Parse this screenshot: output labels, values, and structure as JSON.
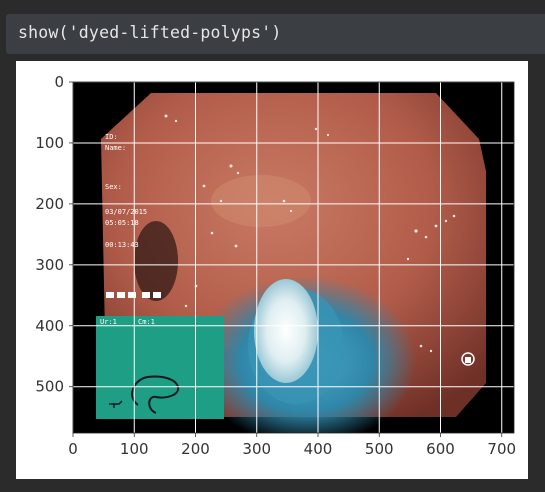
{
  "cell": {
    "code": "show('dyed-lifted-polyps')"
  },
  "plot": {
    "xticks": [
      "0",
      "100",
      "200",
      "300",
      "400",
      "500",
      "600",
      "700"
    ],
    "yticks": [
      "0",
      "100",
      "200",
      "300",
      "400",
      "500"
    ],
    "x_range": [
      0,
      720
    ],
    "y_range": [
      576,
      0
    ],
    "grid": true
  },
  "image_overlay": {
    "labels": [
      "ID:",
      "Name:",
      "Sex:",
      "03/07/2015",
      "05:05:18",
      "00:13:43",
      "Ur:1",
      "Cm:1"
    ],
    "colors": {
      "background": "#000000",
      "mucosa": "#b8604d",
      "dye": "#2f86a8",
      "overlay_panel": "#1e9e84"
    },
    "icons": [
      "scope-shape-icon",
      "probe-icon"
    ]
  }
}
